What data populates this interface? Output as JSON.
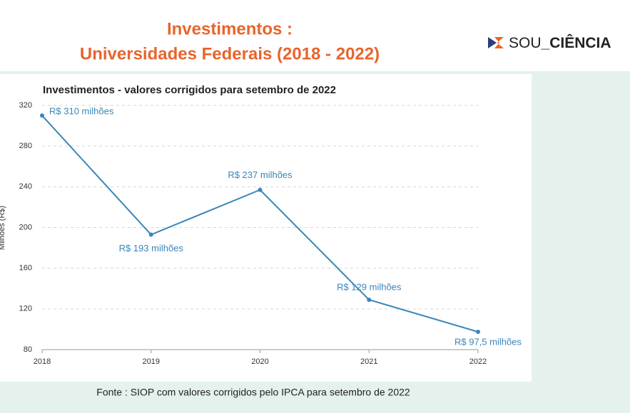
{
  "header": {
    "title_lines": [
      "Investimentos :",
      "Universidades Federais (2018 - 2022)"
    ],
    "logo": [
      "SOU",
      "_CIÊNCIA"
    ]
  },
  "chart_data": {
    "type": "line",
    "title": "Investimentos - valores corrigidos para setembro de 2022",
    "y_label": "Milhões (R$)",
    "categories": [
      "2018",
      "2019",
      "2020",
      "2021",
      "2022"
    ],
    "values": [
      310,
      193,
      237,
      129,
      97.5
    ],
    "value_labels": [
      "R$ 310 milhões",
      "R$ 193 milhões",
      "R$ 237 milhões",
      "R$ 129 milhões",
      "R$ 97,5 milhões"
    ],
    "color": "#3a86b8",
    "ylim": [
      80,
      320
    ],
    "yticks": [
      80,
      120,
      160,
      200,
      240,
      280,
      320
    ],
    "grid": true
  },
  "footer": "Fonte : SIOP com valores corrigidos pelo IPCA para setembro de 2022"
}
